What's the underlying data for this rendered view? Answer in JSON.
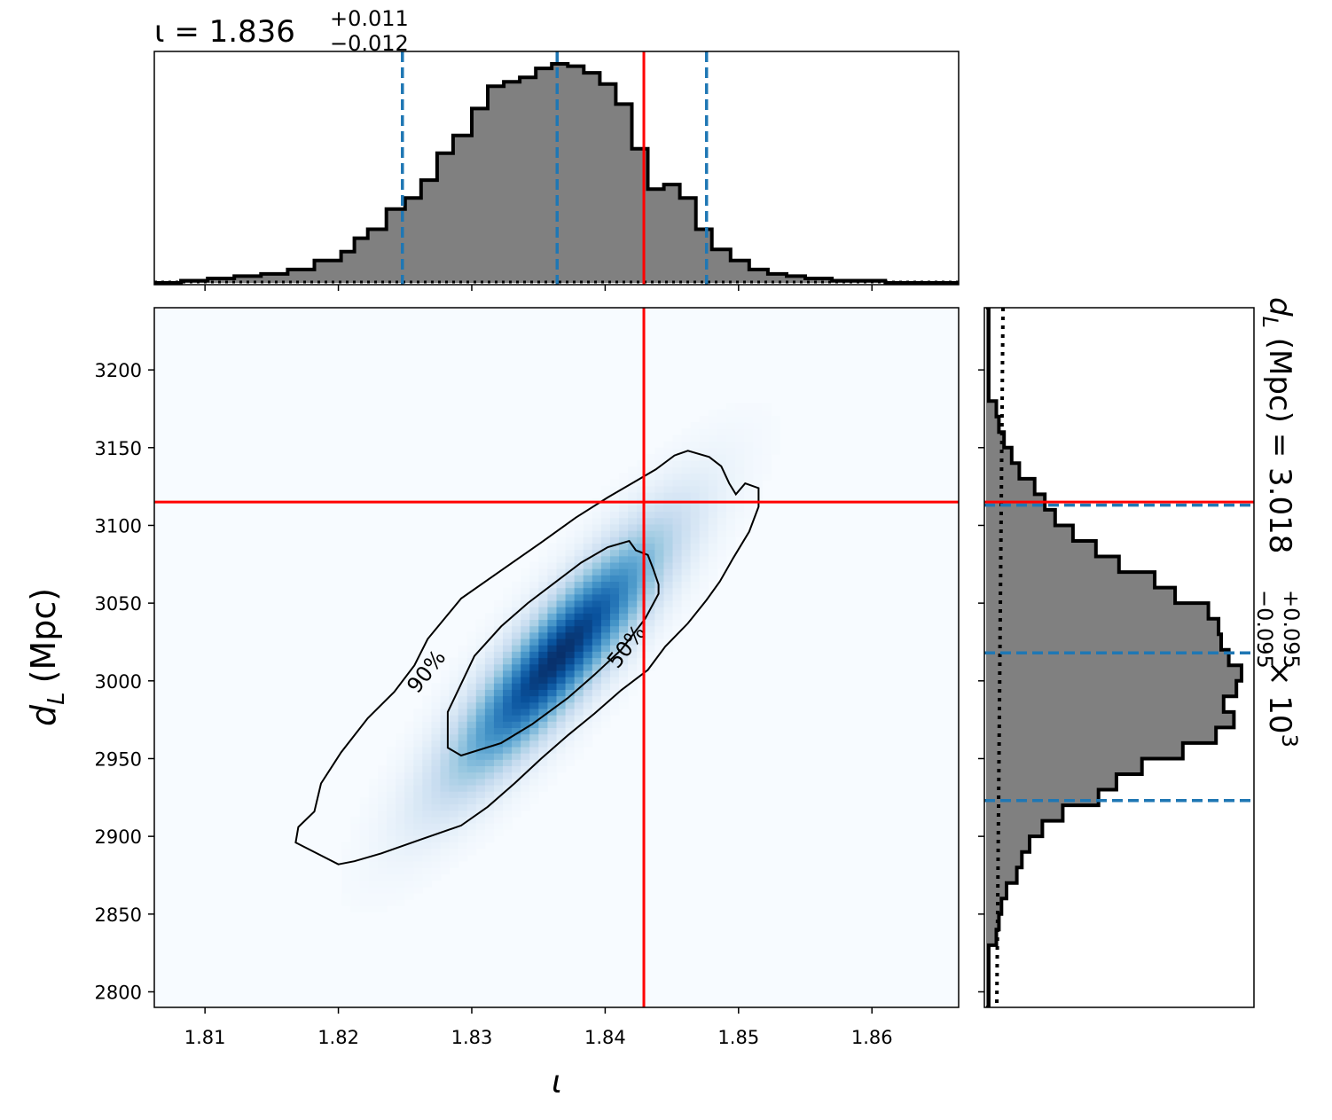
{
  "chart_data": {
    "type": "corner",
    "x_param": {
      "symbol": "ι",
      "median": "1.836",
      "plus": "+0.011",
      "minus": "−0.012",
      "title_prefix": "ι = 1.836",
      "median_value": 1.8364,
      "lower_90": 1.8248,
      "upper_90": 1.8476,
      "injected": 1.8429,
      "xlim": [
        1.8062,
        1.8665
      ],
      "ticks": [
        1.81,
        1.82,
        1.83,
        1.84,
        1.85,
        1.86
      ],
      "tick_labels": [
        "1.81",
        "1.82",
        "1.83",
        "1.84",
        "1.85",
        "1.86"
      ]
    },
    "y_param": {
      "symbol": "d",
      "subscript": "L",
      "unit": "(Mpc)",
      "title_prefix": "d",
      "title_sub": "L",
      "title_rest": " (Mpc) = 3.018",
      "plus": "+0.095",
      "minus": "−0.095",
      "scale_suffix": " × 10",
      "scale_exp": "3",
      "median_value": 3018,
      "lower_90": 2923,
      "upper_90": 3113,
      "injected": 3115,
      "ylim": [
        2790,
        3240
      ],
      "ticks": [
        2800,
        2850,
        2900,
        2950,
        3000,
        3050,
        3100,
        3150,
        3200
      ],
      "tick_labels": [
        "2800",
        "2850",
        "2900",
        "2950",
        "3000",
        "3050",
        "3100",
        "3150",
        "3200"
      ]
    },
    "x_histogram": {
      "bin_edges": [
        1.8062,
        1.8082,
        1.8102,
        1.8122,
        1.8142,
        1.8162,
        1.8182,
        1.8202,
        1.8212,
        1.8222,
        1.8236,
        1.825,
        1.8262,
        1.8274,
        1.8286,
        1.83,
        1.8312,
        1.8324,
        1.8336,
        1.8348,
        1.836,
        1.8372,
        1.8384,
        1.8396,
        1.8408,
        1.842,
        1.8432,
        1.8444,
        1.8456,
        1.8468,
        1.848,
        1.8494,
        1.8508,
        1.8522,
        1.8536,
        1.855,
        1.857,
        1.859,
        1.861,
        1.8665
      ],
      "density": [
        0.0,
        0.01,
        0.02,
        0.03,
        0.04,
        0.06,
        0.1,
        0.14,
        0.2,
        0.24,
        0.33,
        0.38,
        0.46,
        0.58,
        0.66,
        0.78,
        0.88,
        0.9,
        0.92,
        0.96,
        0.98,
        0.97,
        0.94,
        0.89,
        0.8,
        0.6,
        0.42,
        0.44,
        0.38,
        0.24,
        0.15,
        0.1,
        0.06,
        0.04,
        0.03,
        0.02,
        0.01,
        0.01,
        0.0
      ],
      "density_max": 1.0
    },
    "y_histogram": {
      "bin_edges": [
        2790,
        2830,
        2840,
        2850,
        2860,
        2870,
        2880,
        2890,
        2900,
        2910,
        2920,
        2930,
        2940,
        2950,
        2960,
        2970,
        2980,
        2990,
        3000,
        3010,
        3020,
        3030,
        3040,
        3050,
        3060,
        3070,
        3080,
        3090,
        3100,
        3110,
        3120,
        3130,
        3140,
        3150,
        3160,
        3170,
        3180,
        3240
      ],
      "density": [
        0.01,
        0.04,
        0.05,
        0.06,
        0.08,
        0.12,
        0.14,
        0.17,
        0.22,
        0.3,
        0.44,
        0.51,
        0.61,
        0.77,
        0.9,
        0.97,
        0.93,
        0.98,
        1.0,
        0.95,
        0.92,
        0.91,
        0.87,
        0.74,
        0.66,
        0.52,
        0.43,
        0.34,
        0.27,
        0.23,
        0.19,
        0.13,
        0.1,
        0.07,
        0.05,
        0.04,
        0.01
      ],
      "density_max": 1.0
    },
    "contours": [
      {
        "label": "90%",
        "level": 0.9,
        "points": [
          [
            1.82,
            2882
          ],
          [
            1.8212,
            2884
          ],
          [
            1.8232,
            2889
          ],
          [
            1.8262,
            2898
          ],
          [
            1.8292,
            2907
          ],
          [
            1.8312,
            2919
          ],
          [
            1.8332,
            2934
          ],
          [
            1.8352,
            2950
          ],
          [
            1.8372,
            2965
          ],
          [
            1.8392,
            2979
          ],
          [
            1.8412,
            2994
          ],
          [
            1.8432,
            3007
          ],
          [
            1.8445,
            3022
          ],
          [
            1.8462,
            3037
          ],
          [
            1.8476,
            3052
          ],
          [
            1.8486,
            3064
          ],
          [
            1.8496,
            3079
          ],
          [
            1.8508,
            3096
          ],
          [
            1.8515,
            3112
          ],
          [
            1.8515,
            3124
          ],
          [
            1.8505,
            3127
          ],
          [
            1.8498,
            3120
          ],
          [
            1.8493,
            3127
          ],
          [
            1.8487,
            3138
          ],
          [
            1.8478,
            3144
          ],
          [
            1.8462,
            3148
          ],
          [
            1.8452,
            3145
          ],
          [
            1.8438,
            3136
          ],
          [
            1.8422,
            3128
          ],
          [
            1.8402,
            3118
          ],
          [
            1.8378,
            3105
          ],
          [
            1.8352,
            3089
          ],
          [
            1.8322,
            3071
          ],
          [
            1.8292,
            3053
          ],
          [
            1.8267,
            3027
          ],
          [
            1.8257,
            3010
          ],
          [
            1.8242,
            2993
          ],
          [
            1.8222,
            2976
          ],
          [
            1.8202,
            2954
          ],
          [
            1.8187,
            2934
          ],
          [
            1.8182,
            2916
          ],
          [
            1.817,
            2906
          ],
          [
            1.8168,
            2896
          ],
          [
            1.82,
            2882
          ]
        ]
      },
      {
        "label": "50%",
        "level": 0.5,
        "points": [
          [
            1.8282,
            2957
          ],
          [
            1.8292,
            2952
          ],
          [
            1.8322,
            2960
          ],
          [
            1.8345,
            2972
          ],
          [
            1.8372,
            2989
          ],
          [
            1.8392,
            3004
          ],
          [
            1.8412,
            3020
          ],
          [
            1.843,
            3040
          ],
          [
            1.844,
            3056
          ],
          [
            1.844,
            3062
          ],
          [
            1.8436,
            3072
          ],
          [
            1.8432,
            3081
          ],
          [
            1.8423,
            3084
          ],
          [
            1.8418,
            3090
          ],
          [
            1.8402,
            3086
          ],
          [
            1.8382,
            3076
          ],
          [
            1.8362,
            3063
          ],
          [
            1.8342,
            3050
          ],
          [
            1.8322,
            3035
          ],
          [
            1.8302,
            3016
          ],
          [
            1.8282,
            2980
          ],
          [
            1.8282,
            2957
          ]
        ]
      }
    ],
    "density_2d": {
      "mean": [
        1.8365,
        3016
      ],
      "sigma": [
        0.005,
        50
      ],
      "corr": 0.88,
      "colormap": "Blues"
    },
    "colors": {
      "histogram_fill": "#808080",
      "histogram_edge": "#000000",
      "quantile_line": "#1f77b4",
      "injection_line": "#ff0000",
      "contour": "#000000"
    },
    "histogram_style": {
      "prior_line": "dotted"
    },
    "axis_labels": {
      "x": "ι"
    }
  }
}
